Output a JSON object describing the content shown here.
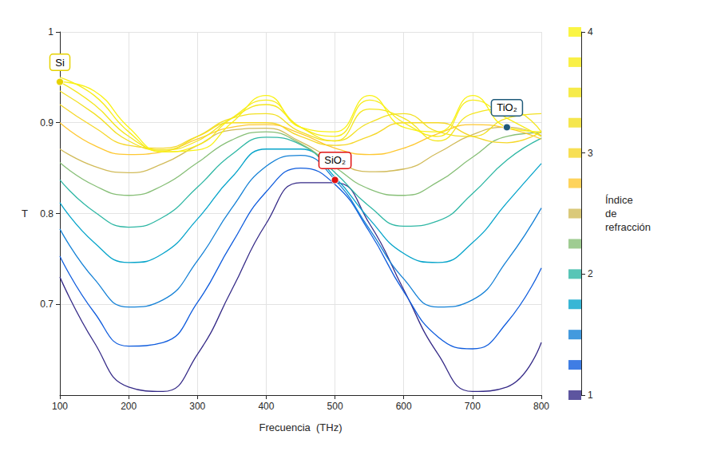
{
  "chart_data": {
    "type": "line",
    "x_label": "Frecuencia  (THz)",
    "y_label": "T",
    "index_label": "Índice de refracción",
    "x": [
      100,
      150,
      200,
      250,
      300,
      350,
      400,
      450,
      500,
      550,
      600,
      650,
      700,
      750,
      800
    ],
    "xlim": [
      100,
      800
    ],
    "xticks": [
      100,
      200,
      300,
      400,
      500,
      600,
      700,
      800
    ],
    "ylim": [
      0.6,
      1
    ],
    "yticks": [
      0.7,
      0.8,
      0.9,
      1
    ],
    "index_lim": [
      1,
      4
    ],
    "index_ticks": [
      1,
      2,
      3,
      4
    ],
    "grid": true,
    "series": [
      {
        "index": 1.0,
        "color": "#352a87",
        "values": [
          0.73,
          0.658,
          0.609,
          0.604,
          0.645,
          0.716,
          0.789,
          0.834,
          0.834,
          0.789,
          0.716,
          0.645,
          0.604,
          0.609,
          0.658
        ]
      },
      {
        "index": 1.25,
        "color": "#0f5cdd",
        "values": [
          0.753,
          0.691,
          0.654,
          0.658,
          0.702,
          0.767,
          0.824,
          0.85,
          0.832,
          0.78,
          0.714,
          0.664,
          0.651,
          0.68,
          0.74
        ]
      },
      {
        "index": 1.5,
        "color": "#1481d6",
        "values": [
          0.783,
          0.728,
          0.697,
          0.705,
          0.748,
          0.806,
          0.852,
          0.864,
          0.837,
          0.783,
          0.728,
          0.697,
          0.705,
          0.748,
          0.806
        ]
      },
      {
        "index": 1.75,
        "color": "#06a4ca",
        "values": [
          0.812,
          0.768,
          0.746,
          0.756,
          0.794,
          0.84,
          0.871,
          0.871,
          0.84,
          0.794,
          0.756,
          0.746,
          0.768,
          0.812,
          0.855
        ]
      },
      {
        "index": 2.0,
        "color": "#2eb7a4",
        "values": [
          0.837,
          0.802,
          0.785,
          0.796,
          0.829,
          0.865,
          0.884,
          0.876,
          0.845,
          0.808,
          0.786,
          0.792,
          0.822,
          0.859,
          0.883
        ]
      },
      {
        "index": 2.25,
        "color": "#87bf77",
        "values": [
          0.856,
          0.831,
          0.82,
          0.831,
          0.856,
          0.881,
          0.89,
          0.877,
          0.851,
          0.827,
          0.82,
          0.835,
          0.862,
          0.885,
          0.889
        ]
      },
      {
        "index": 2.5,
        "color": "#d1bb59",
        "values": [
          0.871,
          0.852,
          0.845,
          0.855,
          0.875,
          0.892,
          0.894,
          0.879,
          0.859,
          0.846,
          0.849,
          0.867,
          0.887,
          0.895,
          0.886
        ]
      },
      {
        "index": 2.75,
        "color": "#fec832",
        "values": [
          0.9,
          0.875,
          0.865,
          0.868,
          0.882,
          0.895,
          0.898,
          0.888,
          0.872,
          0.865,
          0.872,
          0.888,
          0.898,
          0.894,
          0.882
        ]
      },
      {
        "index": 3.0,
        "color": "#f5d729",
        "values": [
          0.92,
          0.895,
          0.875,
          0.872,
          0.885,
          0.9,
          0.9,
          0.885,
          0.875,
          0.885,
          0.9,
          0.9,
          0.885,
          0.878,
          0.89
        ]
      },
      {
        "index": 3.25,
        "color": "#f2e022",
        "values": [
          0.935,
          0.91,
          0.88,
          0.87,
          0.885,
          0.905,
          0.91,
          0.89,
          0.88,
          0.9,
          0.91,
          0.89,
          0.885,
          0.905,
          0.91
        ]
      },
      {
        "index": 3.5,
        "color": "#f4e61d",
        "values": [
          0.945,
          0.92,
          0.885,
          0.87,
          0.88,
          0.905,
          0.92,
          0.895,
          0.88,
          0.915,
          0.905,
          0.88,
          0.91,
          0.915,
          0.89
        ]
      },
      {
        "index": 3.75,
        "color": "#f7ec19",
        "values": [
          0.95,
          0.93,
          0.89,
          0.868,
          0.875,
          0.905,
          0.925,
          0.895,
          0.885,
          0.925,
          0.9,
          0.885,
          0.925,
          0.905,
          0.885
        ]
      },
      {
        "index": 4.0,
        "color": "#f9f215",
        "values": [
          0.945,
          0.935,
          0.895,
          0.868,
          0.87,
          0.9,
          0.93,
          0.895,
          0.89,
          0.93,
          0.895,
          0.89,
          0.93,
          0.895,
          0.89
        ]
      }
    ],
    "annotations": [
      {
        "text": "Si",
        "index": 3.5,
        "frequency": 100,
        "color": "#e6d200"
      },
      {
        "text": "TiO₂",
        "index": 2.5,
        "frequency": 750,
        "color": "#1f5a7a"
      },
      {
        "text": "SiO₂",
        "index": 1.5,
        "frequency": 500,
        "color": "#e01010"
      }
    ]
  }
}
